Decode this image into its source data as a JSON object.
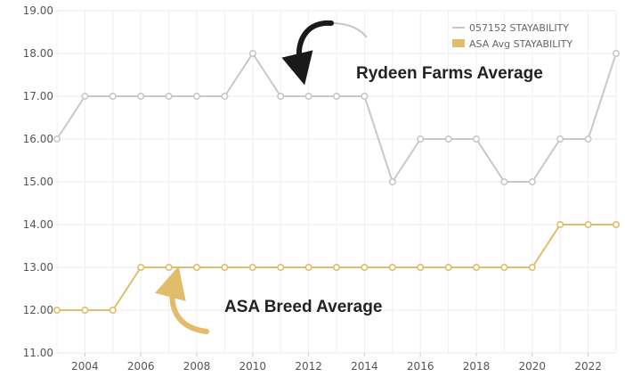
{
  "chart_data": {
    "type": "line",
    "x": [
      2003,
      2004,
      2005,
      2006,
      2007,
      2008,
      2009,
      2010,
      2011,
      2012,
      2013,
      2014,
      2015,
      2016,
      2017,
      2018,
      2019,
      2020,
      2021,
      2022,
      2023
    ],
    "xticks": [
      "2004",
      "2006",
      "2008",
      "2010",
      "2012",
      "2014",
      "2016",
      "2018",
      "2020",
      "2022"
    ],
    "yticks": [
      "11.00",
      "12.00",
      "13.00",
      "14.00",
      "15.00",
      "16.00",
      "17.00",
      "18.00",
      "19.00"
    ],
    "xlim": [
      2003,
      2023
    ],
    "ylim": [
      11,
      19
    ],
    "grid": true,
    "legend_position": "top-right",
    "series": [
      {
        "name": "057152 STAYABILITY",
        "color": "#c8c8c8",
        "values": [
          16,
          17,
          17,
          17,
          17,
          17,
          17,
          18,
          17,
          17,
          17,
          17,
          15,
          16,
          16,
          16,
          15,
          15,
          16,
          16,
          18
        ]
      },
      {
        "name": "ASA Avg STAYABILITY",
        "color": "#e1bd6b",
        "values": [
          12,
          12,
          12,
          13,
          13,
          13,
          13,
          13,
          13,
          13,
          13,
          13,
          13,
          13,
          13,
          13,
          13,
          13,
          14,
          14,
          14
        ]
      }
    ],
    "annotations": [
      {
        "text": "Rydeen Farms Average",
        "color": "#1a1a1a"
      },
      {
        "text": "ASA Breed Average",
        "color": "#e1bd6b"
      }
    ]
  }
}
